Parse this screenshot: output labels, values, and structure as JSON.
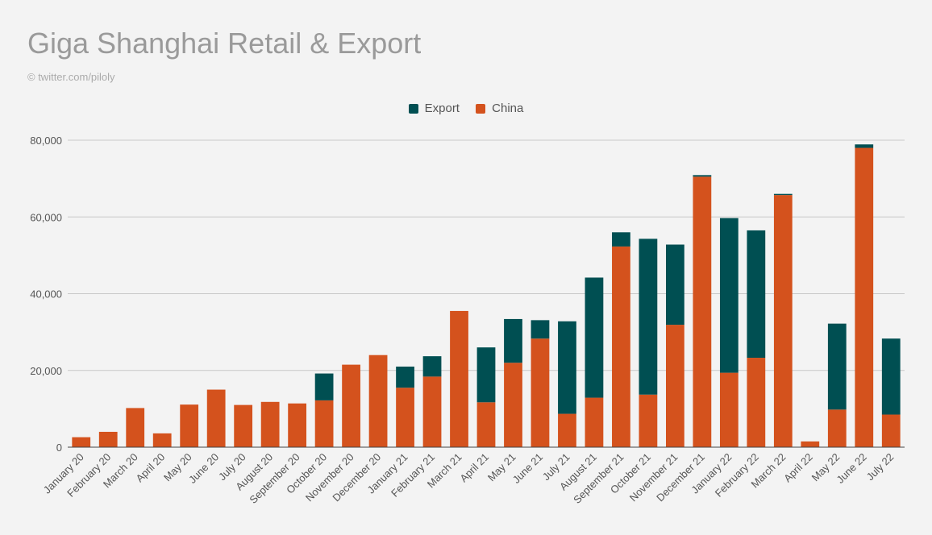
{
  "header": {
    "title": "Giga Shanghai Retail & Export",
    "subtitle": "© twitter.com/piloly"
  },
  "colors": {
    "export": "#004f52",
    "china": "#d4521d",
    "grid": "#c8c8c8",
    "axis": "#444444"
  },
  "chart_data": {
    "type": "bar",
    "stacked": true,
    "title": "Giga Shanghai Retail & Export",
    "xlabel": "",
    "ylabel": "",
    "ylim": [
      0,
      80000
    ],
    "yticks": [
      0,
      20000,
      40000,
      60000,
      80000
    ],
    "ytick_labels": [
      "0",
      "20,000",
      "40,000",
      "60,000",
      "80,000"
    ],
    "legend": {
      "position": "top-center",
      "entries": [
        "Export",
        "China"
      ]
    },
    "categories": [
      "January 20",
      "February 20",
      "March 20",
      "April 20",
      "May 20",
      "June 20",
      "July 20",
      "August 20",
      "September 20",
      "October 20",
      "November 20",
      "December 20",
      "January 21",
      "February 21",
      "March 21",
      "April 21",
      "May 21",
      "June 21",
      "July 21",
      "August 21",
      "September 21",
      "October 21",
      "November 21",
      "December 21",
      "January 22",
      "February 22",
      "March 22",
      "April 22",
      "May 22",
      "June 22",
      "July 22"
    ],
    "series": [
      {
        "name": "China",
        "values": [
          2600,
          4000,
          10200,
          3600,
          11100,
          15000,
          11000,
          11800,
          11400,
          12200,
          21500,
          24000,
          15500,
          18400,
          35500,
          11700,
          22000,
          28300,
          8700,
          12900,
          52300,
          13700,
          31900,
          70500,
          19400,
          23300,
          65700,
          1500,
          9800,
          78000,
          8500
        ]
      },
      {
        "name": "Export",
        "values": [
          0,
          0,
          0,
          0,
          0,
          0,
          0,
          0,
          0,
          7000,
          0,
          0,
          5500,
          5300,
          0,
          14300,
          11400,
          4800,
          24100,
          31300,
          3700,
          40600,
          20900,
          400,
          40300,
          33200,
          300,
          0,
          22400,
          900,
          19800
        ]
      }
    ]
  }
}
